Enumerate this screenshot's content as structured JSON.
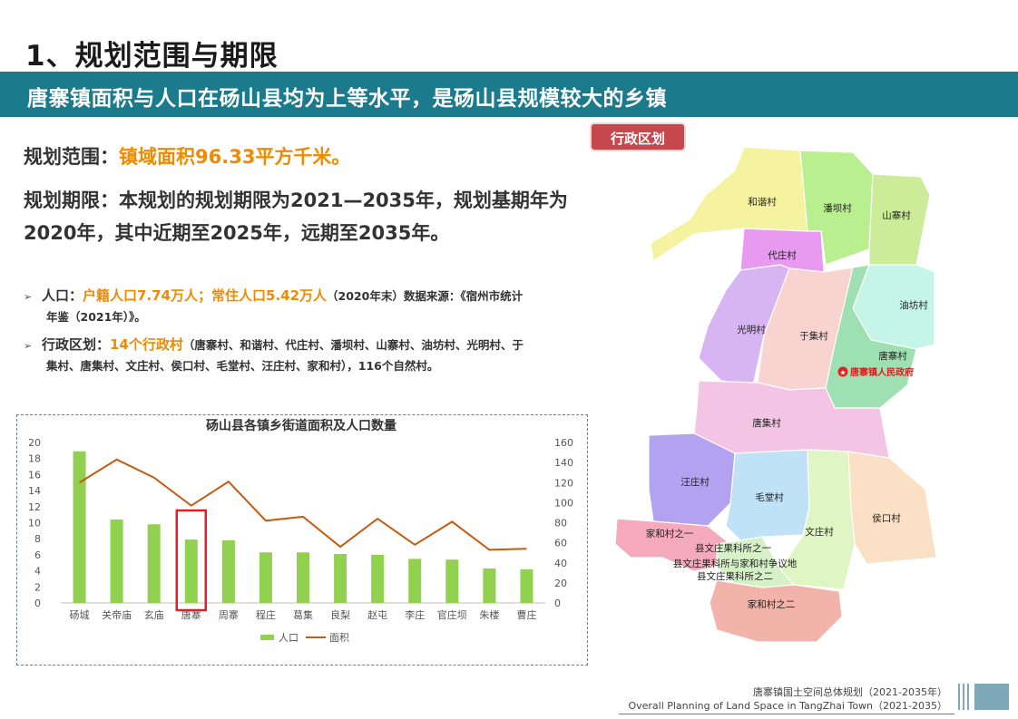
{
  "header": {
    "title": "1、规划范围与期限",
    "banner": "唐寨镇面积与人口在砀山县均为上等水平，是砀山县规模较大的乡镇"
  },
  "scope": {
    "label": "规划范围：",
    "value": "镇域面积96.33平方千米。"
  },
  "period": {
    "text": "规划期限：本规划的规划期限为2021—2035年，规划基期年为2020年，其中近期至2025年，远期至2035年。"
  },
  "bullets": {
    "population": {
      "label": "人口：",
      "highlight": "户籍人口7.74万人；常住人口5.42万人",
      "note_line1": "（2020年末）数据来源：《宿州市统计",
      "note_line2": "年鉴（2021年）》。"
    },
    "admin": {
      "label": "行政区划：",
      "highlight": "14个行政村",
      "note_line1": "（唐寨村、和谐村、代庄村、潘坝村、山寨村、油坊村、光明村、于",
      "note_line2": "集村、唐集村、文庄村、侯口村、毛堂村、汪庄村、家和村），116个自然村。"
    }
  },
  "chart_data": {
    "type": "bar",
    "title": "砀山县各镇乡街道面积及人口数量",
    "categories": [
      "砀城",
      "关帝庙",
      "玄庙",
      "唐寨",
      "周寨",
      "程庄",
      "葛集",
      "良梨",
      "赵屯",
      "李庄",
      "官庄坝",
      "朱楼",
      "曹庄"
    ],
    "series": [
      {
        "name": "人口",
        "type": "bar",
        "axis": "left",
        "color": "#92d050",
        "values": [
          18.9,
          10.4,
          9.8,
          7.9,
          7.8,
          6.3,
          6.3,
          6.1,
          6.0,
          5.5,
          5.4,
          4.3,
          4.2
        ]
      },
      {
        "name": "面积",
        "type": "line",
        "axis": "right",
        "color": "#c55a11",
        "values": [
          120,
          143,
          125,
          97,
          121,
          82,
          86,
          56,
          84,
          58,
          81,
          53,
          54
        ]
      }
    ],
    "ylim_left": [
      0,
      20
    ],
    "ylim_right": [
      0,
      160
    ],
    "yticks_left": [
      "0",
      "2",
      "4",
      "6",
      "8",
      "10",
      "12",
      "14",
      "16",
      "18",
      "20"
    ],
    "yticks_right": [
      "0",
      "20",
      "40",
      "60",
      "80",
      "100",
      "120",
      "140",
      "160"
    ],
    "highlight_category": "唐寨",
    "highlight_color": "#e02020",
    "legend_placement": "bottom",
    "grid": false
  },
  "map": {
    "tag": "行政区划",
    "labels": {
      "hexie": "和谐村",
      "panba": "潘坝村",
      "shanzhai": "山寨村",
      "daizhuang": "代庄村",
      "youfang": "油坊村",
      "guangming": "光明村",
      "yuji": "于集村",
      "tangzhai": "唐寨村",
      "gov": "唐寨镇人民政府",
      "tangji": "唐集村",
      "wangzhuang": "汪庄村",
      "maotang": "毛堂村",
      "houkou": "侯口村",
      "wenzhuang": "文庄村",
      "jiahe1": "家和村之一",
      "orchard1": "县文庄果科所之一",
      "dispute": "县文庄果科所与家和村争议地",
      "orchard2": "县文庄果科所之二",
      "jiahe2": "家和村之二"
    }
  },
  "footer": {
    "line1": "唐寨镇国土空间总体规划（2021-2035年）",
    "line2": "Overall Planning of Land Space in TangZhai Town（2021-2035）"
  }
}
